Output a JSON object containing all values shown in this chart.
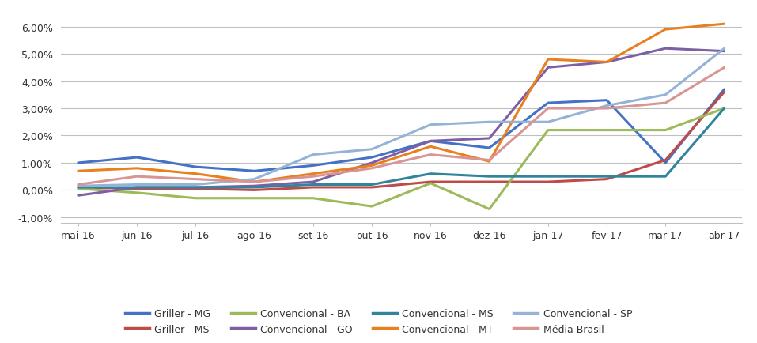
{
  "x_labels": [
    "mai-16",
    "jun-16",
    "jul-16",
    "ago-16",
    "set-16",
    "out-16",
    "nov-16",
    "dez-16",
    "jan-17",
    "fev-17",
    "mar-17",
    "abr-17"
  ],
  "series": [
    {
      "name": "Griller - MG",
      "color": "#4472C4",
      "values": [
        1.0,
        1.2,
        0.85,
        0.7,
        0.9,
        1.2,
        1.8,
        1.55,
        3.2,
        3.3,
        1.0,
        3.7
      ]
    },
    {
      "name": "Griller - MS",
      "color": "#BE4B48",
      "values": [
        0.1,
        0.05,
        0.05,
        0.0,
        0.1,
        0.1,
        0.3,
        0.3,
        0.3,
        0.4,
        1.1,
        3.6
      ]
    },
    {
      "name": "Convencional - BA",
      "color": "#9BBB59",
      "values": [
        0.05,
        -0.1,
        -0.3,
        -0.3,
        -0.3,
        -0.6,
        0.25,
        -0.7,
        2.2,
        2.2,
        2.2,
        3.0
      ]
    },
    {
      "name": "Convencional - GO",
      "color": "#7E5FA6",
      "values": [
        -0.2,
        0.1,
        0.1,
        0.15,
        0.3,
        1.0,
        1.8,
        1.9,
        4.5,
        4.7,
        5.2,
        5.1
      ]
    },
    {
      "name": "Convencional - MS",
      "color": "#31849B",
      "values": [
        0.1,
        0.1,
        0.1,
        0.1,
        0.2,
        0.2,
        0.6,
        0.5,
        0.5,
        0.5,
        0.5,
        3.0
      ]
    },
    {
      "name": "Convencional - MT",
      "color": "#E88020",
      "values": [
        0.7,
        0.8,
        0.6,
        0.3,
        0.6,
        0.9,
        1.6,
        1.05,
        4.8,
        4.7,
        5.9,
        6.1
      ]
    },
    {
      "name": "Convencional - SP",
      "color": "#95B3D7",
      "values": [
        0.15,
        0.2,
        0.2,
        0.4,
        1.3,
        1.5,
        2.4,
        2.5,
        2.5,
        3.1,
        3.5,
        5.2
      ]
    },
    {
      "name": "Média Brasil",
      "color": "#D99594",
      "values": [
        0.2,
        0.5,
        0.4,
        0.3,
        0.5,
        0.8,
        1.3,
        1.1,
        3.0,
        3.0,
        3.2,
        4.5
      ]
    }
  ],
  "legend_order": [
    0,
    1,
    2,
    3,
    4,
    5,
    6,
    7
  ],
  "ylim": [
    -1.2,
    6.5
  ],
  "yticks": [
    -1.0,
    0.0,
    1.0,
    2.0,
    3.0,
    4.0,
    5.0,
    6.0
  ],
  "ytick_labels": [
    "-1,00%",
    "0,00%",
    "1,00%",
    "2,00%",
    "3,00%",
    "4,00%",
    "5,00%",
    "6,00%"
  ],
  "figsize": [
    9.57,
    4.35
  ],
  "dpi": 100
}
